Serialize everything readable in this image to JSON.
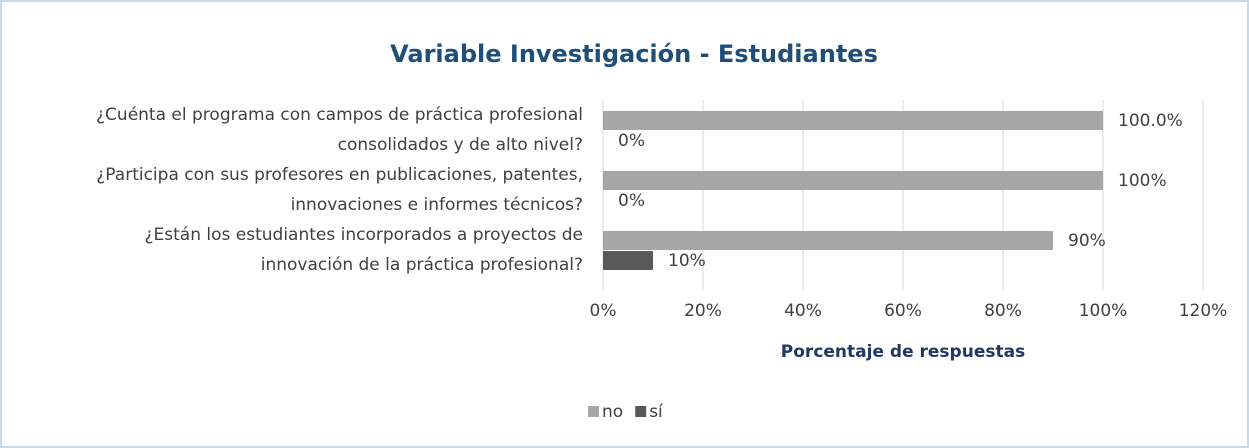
{
  "chart_data": {
    "type": "hbar",
    "title": "Variable Investigación - Estudiantes",
    "xlabel": "Porcentaje de respuestas",
    "categories": [
      "¿Cuénta el programa con campos de práctica profesional\nconsolidados y de alto nivel?",
      "¿Participa con sus profesores en publicaciones, patentes,\ninnovaciones e informes técnicos?",
      "¿Están los estudiantes incorporados a proyectos de\ninnovación de la práctica profesional?"
    ],
    "series": [
      {
        "name": "no",
        "color": "#a6a6a6",
        "values": [
          100,
          100,
          90
        ],
        "value_labels": [
          "100.0%",
          "100%",
          "90%"
        ]
      },
      {
        "name": "sí",
        "color": "#595959",
        "values": [
          0,
          0,
          10
        ],
        "value_labels": [
          "0%",
          "0%",
          "10%"
        ]
      }
    ],
    "xlim": [
      0,
      120
    ],
    "xticks": [
      {
        "value": 0,
        "label": "0%"
      },
      {
        "value": 20,
        "label": "20%"
      },
      {
        "value": 40,
        "label": "40%"
      },
      {
        "value": 60,
        "label": "60%"
      },
      {
        "value": 80,
        "label": "80%"
      },
      {
        "value": 100,
        "label": "100%"
      },
      {
        "value": 120,
        "label": "120%"
      }
    ],
    "grid": true,
    "legend": "bottom"
  }
}
